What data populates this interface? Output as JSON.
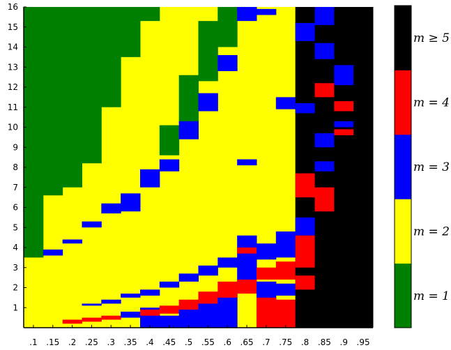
{
  "chart_data": {
    "type": "heatmap",
    "title": "",
    "xlabel": "",
    "ylabel": "",
    "x_tick_labels": [
      ".1",
      ".15",
      ".2",
      ".25",
      ".3",
      ".35",
      ".4",
      ".45",
      ".5",
      ".55",
      ".6",
      ".65",
      ".7",
      ".75",
      ".8",
      ".85",
      ".9",
      ".95"
    ],
    "x_range": [
      0.075,
      0.975
    ],
    "y_ticks": [
      1,
      2,
      3,
      4,
      5,
      6,
      7,
      8,
      9,
      10,
      11,
      12,
      13,
      14,
      15,
      16
    ],
    "y_range": [
      0,
      16
    ],
    "colorbar": {
      "levels": [
        {
          "label": "m = 1",
          "color": "#008000"
        },
        {
          "label": "m = 2",
          "color": "#ffff00"
        },
        {
          "label": "m = 3",
          "color": "#0000ff"
        },
        {
          "label": "m = 4",
          "color": "#ff0000"
        },
        {
          "label": "m ≥ 5",
          "color": "#000000"
        }
      ]
    },
    "columns": [
      {
        "x": 0.1,
        "green_top": 16,
        "green_bottom": 3.5,
        "blue": [],
        "red": [],
        "black_from": null
      },
      {
        "x": 0.15,
        "green_top": 16,
        "green_bottom": 6.6,
        "blue": [
          [
            3.6,
            3.9
          ]
        ],
        "red": [],
        "black_from": null
      },
      {
        "x": 0.2,
        "green_top": 16,
        "green_bottom": 7.0,
        "blue": [
          [
            4.2,
            4.4
          ]
        ],
        "red": [
          [
            0.2,
            0.4
          ]
        ],
        "black_from": null
      },
      {
        "x": 0.25,
        "green_top": 16,
        "green_bottom": 8.2,
        "blue": [
          [
            5.0,
            5.3
          ],
          [
            1.1,
            1.2
          ]
        ],
        "red": [
          [
            0.3,
            0.5
          ]
        ],
        "black_from": null
      },
      {
        "x": 0.3,
        "green_top": 16,
        "green_bottom": 11.0,
        "blue": [
          [
            5.7,
            6.2
          ],
          [
            1.2,
            1.4
          ]
        ],
        "red": [
          [
            0.4,
            0.6
          ]
        ],
        "black_from": null
      },
      {
        "x": 0.35,
        "green_top": 16,
        "green_bottom": 13.5,
        "blue": [
          [
            5.8,
            6.7
          ],
          [
            1.5,
            1.7
          ],
          [
            0.5,
            0.8
          ]
        ],
        "red": [],
        "black_from": null
      },
      {
        "x": 0.4,
        "green_top": 16,
        "green_bottom": 15.3,
        "blue": [
          [
            7.0,
            7.9
          ],
          [
            1.6,
            1.9
          ],
          [
            0.0,
            1.0
          ]
        ],
        "red": [
          [
            0.6,
            0.9
          ]
        ],
        "black_from": null
      },
      {
        "x": 0.45,
        "green_top": 10.1,
        "green_bottom": 8.6,
        "blue": [
          [
            7.8,
            8.4
          ],
          [
            2.0,
            2.3
          ],
          [
            0.0,
            0.6
          ]
        ],
        "red": [
          [
            0.7,
            1.1
          ]
        ],
        "black_from": null
      },
      {
        "x": 0.5,
        "green_top": 12.6,
        "green_bottom": 10.2,
        "blue": [
          [
            9.4,
            10.3
          ],
          [
            2.3,
            2.7
          ],
          [
            0.0,
            1.0
          ]
        ],
        "red": [
          [
            0.9,
            1.4
          ]
        ],
        "black_from": null
      },
      {
        "x": 0.55,
        "green_top": 15.3,
        "green_bottom": 12.3,
        "blue": [
          [
            10.8,
            11.7
          ],
          [
            2.6,
            3.1
          ],
          [
            0.0,
            1.3
          ]
        ],
        "red": [
          [
            1.2,
            1.8
          ]
        ],
        "black_from": null
      },
      {
        "x": 0.6,
        "green_top": 16,
        "green_bottom": 14.0,
        "blue": [
          [
            12.8,
            13.6
          ],
          [
            3.0,
            3.5
          ],
          [
            0.0,
            1.8
          ]
        ],
        "red": [
          [
            1.5,
            2.3
          ]
        ],
        "black_from": null
      },
      {
        "x": 0.65,
        "green_top": null,
        "green_bottom": null,
        "blue": [
          [
            15.3,
            16.0
          ],
          [
            8.1,
            8.4
          ],
          [
            2.0,
            4.6
          ]
        ],
        "red": [
          [
            1.7,
            2.4
          ],
          [
            3.7,
            4.0
          ]
        ],
        "black_from": null
      },
      {
        "x": 0.7,
        "green_top": null,
        "green_bottom": null,
        "blue": [
          [
            15.6,
            15.9
          ],
          [
            3.4,
            4.2
          ],
          [
            1.3,
            2.3
          ]
        ],
        "red": [
          [
            0.0,
            1.5
          ],
          [
            2.4,
            3.0
          ]
        ],
        "black_from": null
      },
      {
        "x": 0.75,
        "green_top": null,
        "green_bottom": null,
        "blue": [
          [
            10.9,
            11.5
          ],
          [
            3.5,
            4.8
          ],
          [
            1.6,
            2.2
          ]
        ],
        "red": [
          [
            0.0,
            1.4
          ],
          [
            2.4,
            3.3
          ]
        ],
        "black_from": null
      },
      {
        "x": 0.8,
        "green_top": null,
        "green_bottom": null,
        "blue": [
          [
            14.3,
            15.2
          ],
          [
            10.7,
            11.2
          ],
          [
            4.6,
            5.5
          ]
        ],
        "red": [
          [
            3.0,
            4.6
          ],
          [
            6.5,
            7.7
          ],
          [
            1.9,
            2.6
          ]
        ],
        "black_from": 0.0
      },
      {
        "x": 0.85,
        "green_top": null,
        "green_bottom": null,
        "blue": [
          [
            15.1,
            16.0
          ],
          [
            13.4,
            14.2
          ],
          [
            9.0,
            9.7
          ],
          [
            7.8,
            8.3
          ]
        ],
        "red": [
          [
            5.8,
            7.0
          ],
          [
            11.5,
            12.2
          ]
        ],
        "black_from": 0.0
      },
      {
        "x": 0.9,
        "green_top": null,
        "green_bottom": null,
        "blue": [
          [
            12.1,
            13.1
          ],
          [
            10.0,
            10.3
          ]
        ],
        "red": [
          [
            9.6,
            9.9
          ],
          [
            10.8,
            11.3
          ]
        ],
        "black_from": 0.0
      },
      {
        "x": 0.95,
        "green_top": null,
        "green_bottom": null,
        "blue": [],
        "red": [],
        "black_from": 0.0
      }
    ]
  }
}
